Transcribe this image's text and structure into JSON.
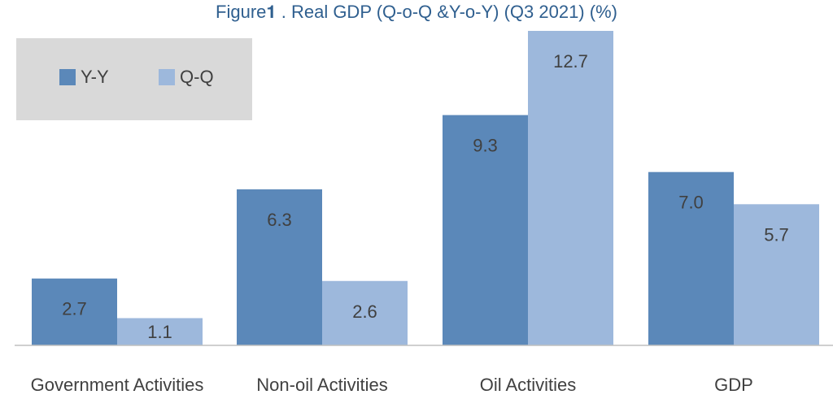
{
  "chart_data": {
    "type": "bar",
    "title": "Figure𝟏 . Real GDP (Q-o-Q &Y-o-Y) (Q3 2021) (%)",
    "categories": [
      "Government Activities",
      "Non-oil Activities",
      "Oil Activities",
      "GDP"
    ],
    "series": [
      {
        "name": "Y-Y",
        "values": [
          2.7,
          6.3,
          9.3,
          7.0
        ],
        "color": "#5b88b9"
      },
      {
        "name": "Q-Q",
        "values": [
          1.1,
          2.6,
          12.7,
          5.7
        ],
        "color": "#9db8dc"
      }
    ],
    "value_labels": {
      "Y-Y": [
        "2.7",
        "6.3",
        "9.3",
        "7.0"
      ],
      "Q-Q": [
        "1.1",
        "2.6",
        "12.7",
        "5.7"
      ]
    },
    "ylim": [
      0,
      12.7
    ],
    "grid": false,
    "legend_position": "top-left",
    "xlabel": "",
    "ylabel": ""
  }
}
